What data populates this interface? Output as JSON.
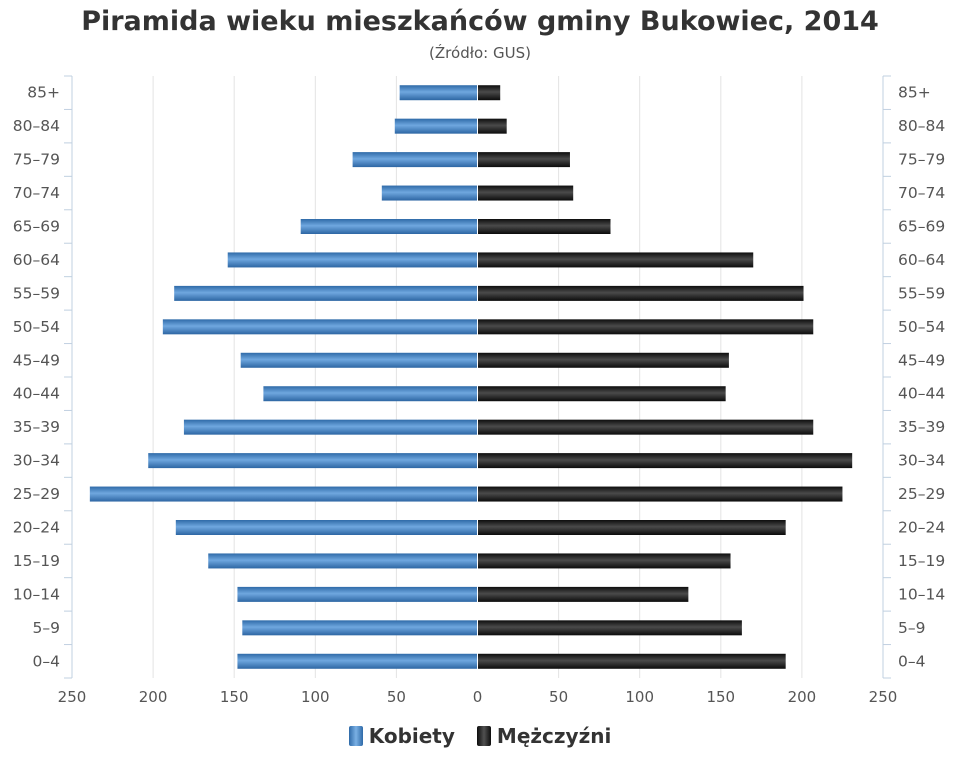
{
  "chart_data": {
    "type": "bar",
    "orientation": "horizontal",
    "title": "Piramida wieku mieszkańców gminy Bukowiec, 2014",
    "subtitle": "(Źródło: GUS)",
    "categories": [
      "85+",
      "80–84",
      "75–79",
      "70–74",
      "65–69",
      "60–64",
      "55–59",
      "50–54",
      "45–49",
      "40–44",
      "35–39",
      "30–34",
      "25–29",
      "20–24",
      "15–19",
      "10–14",
      "5–9",
      "0–4"
    ],
    "series": [
      {
        "name": "Kobiety",
        "color": "#4a86c5",
        "values": [
          48,
          51,
          77,
          59,
          109,
          154,
          187,
          194,
          146,
          132,
          181,
          203,
          239,
          186,
          166,
          148,
          145,
          148
        ]
      },
      {
        "name": "Mężczyźni",
        "color": "#1a1a1a",
        "values": [
          14,
          18,
          57,
          59,
          82,
          170,
          201,
          207,
          155,
          153,
          207,
          231,
          225,
          190,
          156,
          130,
          163,
          190
        ]
      }
    ],
    "xlim": [
      -250,
      250
    ],
    "x_ticks": [
      "250",
      "200",
      "150",
      "100",
      "50",
      "0",
      "50",
      "100",
      "150",
      "200",
      "250"
    ],
    "grid": true,
    "legend_position": "bottom"
  }
}
